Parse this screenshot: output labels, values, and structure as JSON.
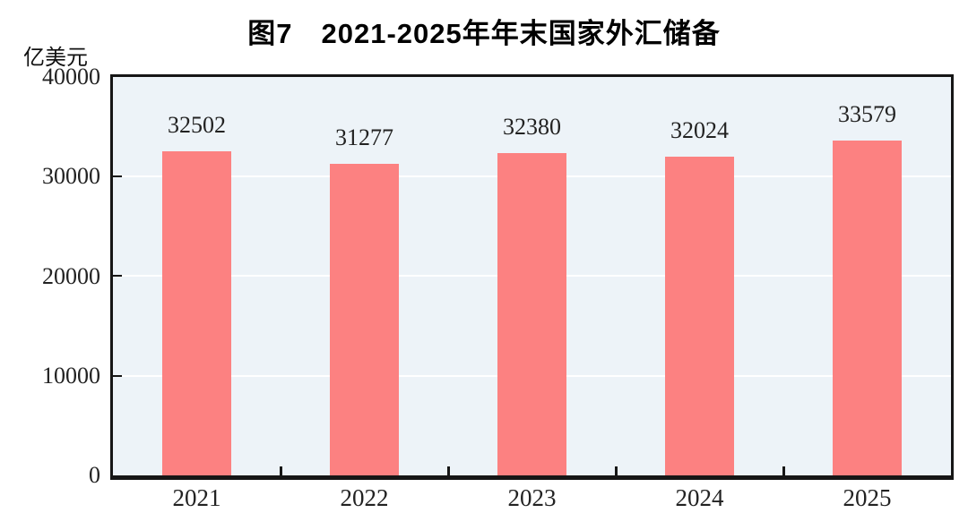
{
  "chart_data": {
    "type": "bar",
    "title": "图7　2021-2025年年末国家外汇储备",
    "ylabel": "亿美元",
    "xlabel": "",
    "categories": [
      "2021",
      "2022",
      "2023",
      "2024",
      "2025"
    ],
    "values": [
      32502,
      31277,
      32380,
      32024,
      33579
    ],
    "data_labels": true,
    "ylim": [
      0,
      40000
    ],
    "yticks": [
      0,
      10000,
      20000,
      30000,
      40000
    ],
    "grid": true,
    "legend_position": "none",
    "colors": {
      "bar": "#FC8181",
      "plot_background": "#EDF3F8",
      "gridline": "#FFFFFF",
      "axis": "#161616",
      "tick_text": "#222222",
      "title_text": "#000000"
    }
  }
}
